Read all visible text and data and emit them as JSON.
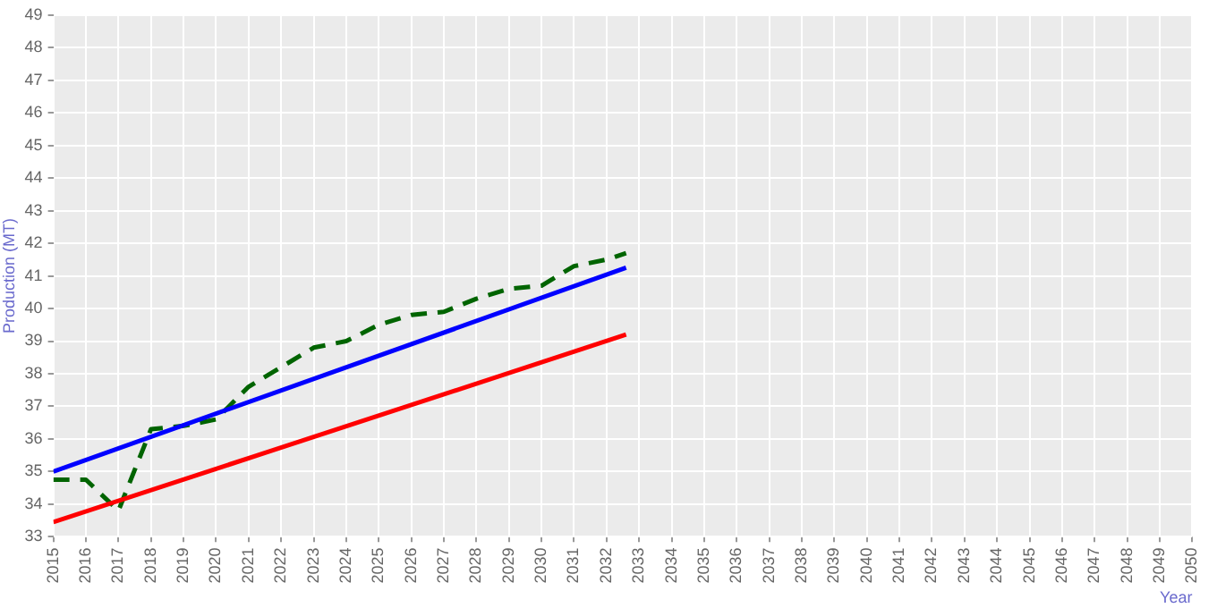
{
  "chart_data": {
    "type": "line",
    "xlabel": "Year",
    "ylabel": "Production (MT)",
    "xlim": [
      2015,
      2050
    ],
    "xticks": [
      2015,
      2016,
      2017,
      2018,
      2019,
      2020,
      2021,
      2022,
      2023,
      2024,
      2025,
      2026,
      2027,
      2028,
      2029,
      2030,
      2031,
      2032,
      2033,
      2034,
      2035,
      2036,
      2037,
      2038,
      2039,
      2040,
      2041,
      2042,
      2043,
      2044,
      2045,
      2046,
      2047,
      2048,
      2049,
      2050
    ],
    "ylim": [
      33,
      49
    ],
    "yticks": [
      33,
      34,
      35,
      36,
      37,
      38,
      39,
      40,
      41,
      42,
      43,
      44,
      45,
      46,
      47,
      48,
      49
    ],
    "grid": true,
    "legend": false,
    "marker": "none",
    "series": [
      {
        "color": "#0000ff",
        "line_style": "solid",
        "x": [
          2015,
          2032.6
        ],
        "values": [
          35.0,
          41.25
        ]
      },
      {
        "color": "#ff0000",
        "line_style": "solid",
        "x": [
          2015,
          2032.6
        ],
        "values": [
          33.45,
          39.2
        ]
      },
      {
        "color": "#006400",
        "line_style": "dashed",
        "x": [
          2015,
          2016,
          2017,
          2018,
          2019,
          2020,
          2021,
          2022,
          2023,
          2024,
          2025,
          2026,
          2027,
          2028,
          2029,
          2030,
          2031,
          2032,
          2032.6
        ],
        "values": [
          34.75,
          34.75,
          33.8,
          36.3,
          36.4,
          36.6,
          37.6,
          38.2,
          38.8,
          39.0,
          39.5,
          39.8,
          39.9,
          40.3,
          40.6,
          40.7,
          41.3,
          41.5,
          41.7
        ]
      }
    ]
  }
}
